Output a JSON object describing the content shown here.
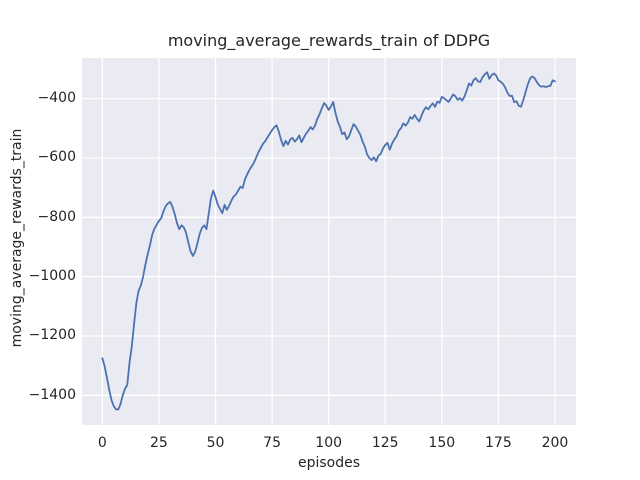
{
  "chart_data": {
    "type": "line",
    "title": "moving_average_rewards_train of DDPG",
    "xlabel": "episodes",
    "ylabel": "moving_average_rewards_train",
    "legend": null,
    "grid": true,
    "style": "seaborn-darkgrid",
    "colors": {
      "line": "#4c72b0",
      "plot_background": "#eaeaf2",
      "grid": "#ffffff",
      "figure_background": "#ffffff",
      "text": "#262626"
    },
    "xlim": [
      -9,
      209.3
    ],
    "ylim": [
      -1500,
      -263
    ],
    "xticks": [
      0,
      25,
      50,
      75,
      100,
      125,
      150,
      175,
      200
    ],
    "xtick_labels": [
      "0",
      "25",
      "50",
      "75",
      "100",
      "125",
      "150",
      "175",
      "200"
    ],
    "yticks": [
      -400,
      -600,
      -800,
      -1000,
      -1200,
      -1400
    ],
    "ytick_labels": [
      "−400",
      "−600",
      "−800",
      "−1000",
      "−1200",
      "−1400"
    ],
    "x": [
      0,
      1,
      2,
      3,
      4,
      5,
      6,
      7,
      8,
      9,
      10,
      11,
      12,
      13,
      14,
      15,
      16,
      17,
      18,
      19,
      20,
      21,
      22,
      23,
      24,
      25,
      26,
      27,
      28,
      29,
      30,
      31,
      32,
      33,
      34,
      35,
      36,
      37,
      38,
      39,
      40,
      41,
      42,
      43,
      44,
      45,
      46,
      47,
      48,
      49,
      50,
      51,
      52,
      53,
      54,
      55,
      56,
      57,
      58,
      59,
      60,
      61,
      62,
      63,
      64,
      65,
      66,
      67,
      68,
      69,
      70,
      71,
      72,
      73,
      74,
      75,
      76,
      77,
      78,
      79,
      80,
      81,
      82,
      83,
      84,
      85,
      86,
      87,
      88,
      89,
      90,
      91,
      92,
      93,
      94,
      95,
      96,
      97,
      98,
      99,
      100,
      101,
      102,
      103,
      104,
      105,
      106,
      107,
      108,
      109,
      110,
      111,
      112,
      113,
      114,
      115,
      116,
      117,
      118,
      119,
      120,
      121,
      122,
      123,
      124,
      125,
      126,
      127,
      128,
      129,
      130,
      131,
      132,
      133,
      134,
      135,
      136,
      137,
      138,
      139,
      140,
      141,
      142,
      143,
      144,
      145,
      146,
      147,
      148,
      149,
      150,
      151,
      152,
      153,
      154,
      155,
      156,
      157,
      158,
      159,
      160,
      161,
      162,
      163,
      164,
      165,
      166,
      167,
      168,
      169,
      170,
      171,
      172,
      173,
      174,
      175,
      176,
      177,
      178,
      179,
      180,
      181,
      182,
      183,
      184,
      185,
      186,
      187,
      188,
      189,
      190,
      191,
      192,
      193,
      194,
      195,
      196,
      197,
      198,
      199,
      200
    ],
    "values": [
      -1275,
      -1302,
      -1340,
      -1380,
      -1415,
      -1436,
      -1447,
      -1448,
      -1430,
      -1400,
      -1378,
      -1365,
      -1290,
      -1235,
      -1160,
      -1090,
      -1048,
      -1030,
      -1000,
      -960,
      -925,
      -895,
      -860,
      -838,
      -825,
      -812,
      -803,
      -780,
      -762,
      -753,
      -748,
      -765,
      -790,
      -820,
      -840,
      -827,
      -834,
      -852,
      -885,
      -915,
      -930,
      -916,
      -888,
      -856,
      -836,
      -827,
      -840,
      -788,
      -735,
      -710,
      -732,
      -757,
      -772,
      -786,
      -758,
      -775,
      -761,
      -744,
      -730,
      -723,
      -710,
      -697,
      -701,
      -672,
      -655,
      -640,
      -628,
      -615,
      -598,
      -580,
      -566,
      -552,
      -543,
      -530,
      -518,
      -506,
      -496,
      -490,
      -512,
      -540,
      -560,
      -542,
      -555,
      -538,
      -532,
      -545,
      -537,
      -524,
      -547,
      -532,
      -518,
      -508,
      -496,
      -504,
      -490,
      -468,
      -452,
      -432,
      -415,
      -424,
      -438,
      -427,
      -411,
      -448,
      -477,
      -495,
      -520,
      -514,
      -537,
      -527,
      -506,
      -486,
      -494,
      -508,
      -522,
      -545,
      -562,
      -588,
      -600,
      -607,
      -598,
      -611,
      -592,
      -586,
      -568,
      -556,
      -549,
      -572,
      -552,
      -538,
      -527,
      -508,
      -499,
      -483,
      -491,
      -481,
      -462,
      -468,
      -455,
      -467,
      -477,
      -458,
      -440,
      -429,
      -436,
      -425,
      -416,
      -428,
      -410,
      -414,
      -394,
      -398,
      -405,
      -411,
      -399,
      -386,
      -392,
      -404,
      -398,
      -407,
      -393,
      -372,
      -349,
      -356,
      -338,
      -331,
      -342,
      -344,
      -328,
      -318,
      -311,
      -333,
      -321,
      -315,
      -322,
      -338,
      -343,
      -350,
      -362,
      -380,
      -391,
      -390,
      -412,
      -409,
      -424,
      -427,
      -405,
      -378,
      -352,
      -332,
      -325,
      -331,
      -344,
      -355,
      -360,
      -358,
      -361,
      -358,
      -357,
      -338,
      -342
    ]
  }
}
